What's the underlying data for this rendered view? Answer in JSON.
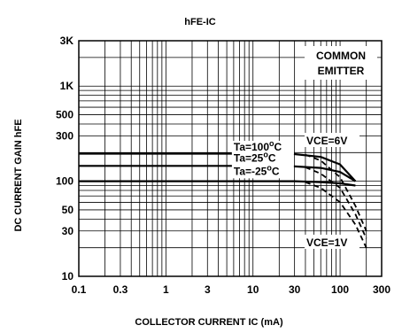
{
  "chart_data": {
    "type": "line",
    "title": "hFE-IC",
    "xlabel": "COLLECTOR CURRENT IC (mA)",
    "ylabel": "DC CURRENT GAIN hFE",
    "x_scale": "log",
    "y_scale": "log",
    "xlim": [
      0.1,
      300
    ],
    "ylim": [
      10,
      3000
    ],
    "x_ticks": [
      {
        "value": 0.1,
        "label": "0.1"
      },
      {
        "value": 0.3,
        "label": "0.3"
      },
      {
        "value": 1,
        "label": "1"
      },
      {
        "value": 3,
        "label": "3"
      },
      {
        "value": 10,
        "label": "10"
      },
      {
        "value": 30,
        "label": "30"
      },
      {
        "value": 100,
        "label": "100"
      },
      {
        "value": 300,
        "label": "300"
      }
    ],
    "y_ticks": [
      {
        "value": 10,
        "label": "10"
      },
      {
        "value": 30,
        "label": "30"
      },
      {
        "value": 50,
        "label": "50"
      },
      {
        "value": 100,
        "label": "100"
      },
      {
        "value": 300,
        "label": "300"
      },
      {
        "value": 500,
        "label": "500"
      },
      {
        "value": 1000,
        "label": "1K"
      },
      {
        "value": 3000,
        "label": "3K"
      }
    ],
    "grid": true,
    "annotations": {
      "common_emitter_line1": "COMMON",
      "common_emitter_line2": "EMITTER",
      "vce6": "VCE=6V",
      "vce1": "VCE=1V"
    },
    "series": [
      {
        "name": "Ta=100°C",
        "condition": "VCE=6V",
        "line": "solid",
        "x": [
          0.1,
          10,
          30,
          60,
          100,
          150
        ],
        "y": [
          195,
          195,
          193,
          180,
          150,
          100
        ]
      },
      {
        "name": "Ta=25°C",
        "condition": "VCE=6V",
        "line": "solid",
        "x": [
          0.1,
          10,
          30,
          60,
          100,
          150
        ],
        "y": [
          145,
          145,
          143,
          138,
          125,
          100
        ]
      },
      {
        "name": "Ta=-25°C",
        "condition": "VCE=6V",
        "line": "solid",
        "x": [
          0.1,
          10,
          30,
          60,
          100,
          150
        ],
        "y": [
          100,
          100,
          100,
          98,
          95,
          90
        ]
      },
      {
        "name": "Ta=100°C",
        "condition": "VCE=1V",
        "line": "dashed",
        "x": [
          40,
          60,
          100,
          150,
          200
        ],
        "y": [
          190,
          165,
          110,
          55,
          30
        ]
      },
      {
        "name": "Ta=25°C",
        "condition": "VCE=1V",
        "line": "dashed",
        "x": [
          40,
          60,
          100,
          150,
          200
        ],
        "y": [
          140,
          120,
          85,
          45,
          25
        ]
      },
      {
        "name": "Ta=-25°C",
        "condition": "VCE=1V",
        "line": "dashed",
        "x": [
          40,
          60,
          100,
          150,
          200
        ],
        "y": [
          98,
          85,
          60,
          35,
          20
        ]
      }
    ],
    "series_labels": [
      {
        "text": "Ta=100",
        "sup": "o",
        "unit": "C",
        "x": 6,
        "y": 210
      },
      {
        "text": "Ta=25",
        "sup": "o",
        "unit": "C",
        "x": 6,
        "y": 160
      },
      {
        "text": "Ta=-25",
        "sup": "o",
        "unit": "C",
        "x": 6,
        "y": 117
      }
    ]
  }
}
